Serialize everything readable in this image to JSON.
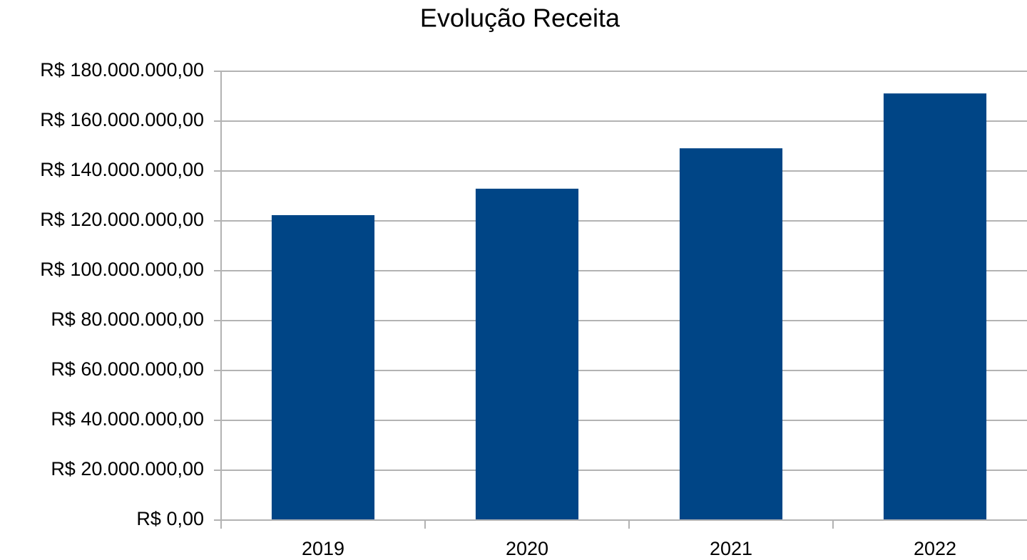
{
  "chart_data": {
    "type": "bar",
    "title": "Evolução Receita",
    "categories": [
      "2019",
      "2020",
      "2021",
      "2022"
    ],
    "values": [
      122300000,
      132900000,
      149100000,
      171100000
    ],
    "color": "#004586",
    "ylim": [
      0,
      180000000
    ],
    "yticks": [
      {
        "value": 0,
        "label": "R$ 0,00"
      },
      {
        "value": 20000000,
        "label": "R$ 20.000.000,00"
      },
      {
        "value": 40000000,
        "label": "R$ 40.000.000,00"
      },
      {
        "value": 60000000,
        "label": "R$ 60.000.000,00"
      },
      {
        "value": 80000000,
        "label": "R$ 80.000.000,00"
      },
      {
        "value": 100000000,
        "label": "R$ 100.000.000,00"
      },
      {
        "value": 120000000,
        "label": "R$ 120.000.000,00"
      },
      {
        "value": 140000000,
        "label": "R$ 140.000.000,00"
      },
      {
        "value": 160000000,
        "label": "R$ 160.000.000,00"
      },
      {
        "value": 180000000,
        "label": "R$ 180.000.000,00"
      }
    ],
    "grid": true
  }
}
